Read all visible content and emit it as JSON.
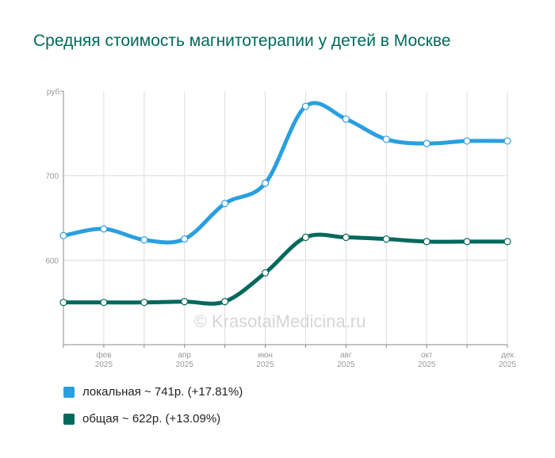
{
  "chart_data": {
    "type": "line",
    "title": "Средняя стоимость магнитотерапии у детей в Москве",
    "ylabel": "руб.",
    "ylim": [
      500,
      800
    ],
    "yticks": [
      600,
      700
    ],
    "x": [
      "янв 2025",
      "фев 2025",
      "мар 2025",
      "апр 2025",
      "май 2025",
      "июн 2025",
      "июл 2025",
      "авг 2025",
      "сен 2025",
      "окт 2025",
      "ноя 2025",
      "дек 2025"
    ],
    "xtick_labels": [
      {
        "index": 1,
        "month": "фев",
        "year": "2025"
      },
      {
        "index": 3,
        "month": "апр",
        "year": "2025"
      },
      {
        "index": 5,
        "month": "июн",
        "year": "2025"
      },
      {
        "index": 7,
        "month": "авг",
        "year": "2025"
      },
      {
        "index": 9,
        "month": "окт",
        "year": "2025"
      },
      {
        "index": 11,
        "month": "дек",
        "year": "2025"
      }
    ],
    "grid": true,
    "watermark": "© KrasotaiMedicina.ru",
    "series": [
      {
        "name": "локальная",
        "color": "#2a9fe0",
        "values": [
          629,
          637,
          624,
          625,
          667,
          691,
          782,
          767,
          743,
          738,
          741,
          741
        ],
        "legend": "локальная ~ 741р. (+17.81%)"
      },
      {
        "name": "общая",
        "color": "#00695c",
        "values": [
          550,
          550,
          550,
          551,
          551,
          585,
          627,
          627,
          625,
          622,
          622,
          622
        ],
        "legend": "общая ~ 622р. (+13.09%)"
      }
    ],
    "legend_position": "bottom-left"
  }
}
